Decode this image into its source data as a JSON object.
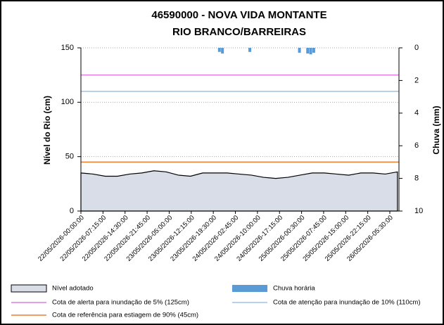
{
  "chart_data": {
    "type": "combo",
    "title": [
      "46590000 - NOVA VIDA MONTANTE",
      "RIO BRANCO/BARREIRAS"
    ],
    "ylabel": "Nível do Rio (cm)",
    "y2label": "Chuva (mm)",
    "xlim": [
      0,
      104.5
    ],
    "xticks": [
      {
        "value": 0,
        "label": "22/05/2026-00:00:00"
      },
      {
        "value": 7.25,
        "label": "22/05/2026-07:15:00"
      },
      {
        "value": 14.5,
        "label": "22/05/2026-14:30:00"
      },
      {
        "value": 21.75,
        "label": "22/05/2026-21:45:00"
      },
      {
        "value": 29,
        "label": "23/05/2026-05:00:00"
      },
      {
        "value": 36.25,
        "label": "23/05/2026-12:15:00"
      },
      {
        "value": 43.5,
        "label": "23/05/2026-19:30:00"
      },
      {
        "value": 50.75,
        "label": "24/05/2026-02:45:00"
      },
      {
        "value": 58,
        "label": "24/05/2026-10:00:00"
      },
      {
        "value": 65.25,
        "label": "24/05/2026-17:15:00"
      },
      {
        "value": 72.5,
        "label": "25/05/2026-00:30:00"
      },
      {
        "value": 79.75,
        "label": "25/05/2026-07:45:00"
      },
      {
        "value": 87,
        "label": "25/05/2026-15:00:00"
      },
      {
        "value": 94.25,
        "label": "25/05/2026-22:15:00"
      },
      {
        "value": 101.5,
        "label": "26/05/2026-05:30:00"
      }
    ],
    "ylim": [
      0,
      150
    ],
    "yticks": [
      0,
      50,
      100,
      150
    ],
    "y2lim": [
      0,
      10
    ],
    "y2ticks": [
      0,
      2,
      4,
      6,
      8,
      10
    ],
    "y2_inverted": true,
    "grid": true,
    "series": [
      {
        "name": "Nível adotado",
        "type": "area",
        "color": "#d9dde8",
        "x": [
          0,
          4,
          8,
          12,
          16,
          20,
          24,
          28,
          32,
          36,
          40,
          44,
          48,
          52,
          56,
          60,
          64,
          68,
          72,
          76,
          80,
          84,
          88,
          92,
          96,
          100,
          104
        ],
        "values": [
          35,
          34,
          32,
          32,
          34,
          35,
          37,
          36,
          33,
          32,
          35,
          35,
          35,
          34,
          33,
          31,
          30,
          31,
          33,
          35,
          35,
          34,
          33,
          35,
          35,
          34,
          36
        ]
      },
      {
        "name": "Chuva horária",
        "type": "bar",
        "axis": "y2",
        "color": "#5b9bd5",
        "x": [
          45.5,
          46.5,
          55.5,
          71.8,
          74.5,
          75.5,
          76.5
        ],
        "values": [
          0.25,
          0.35,
          0.25,
          0.3,
          0.35,
          0.4,
          0.3
        ]
      }
    ],
    "reference_lines": [
      {
        "name": "Cota de alerta para inundação de 5% (125cm)",
        "value": 125,
        "color": "#e07de0"
      },
      {
        "name": "Cota de atenção para inundação de 10% (110cm)",
        "value": 110,
        "color": "#9dc3e6"
      },
      {
        "name": "Cota de referência para estiagem de 90% (45cm)",
        "value": 45,
        "color": "#ed7d31"
      }
    ]
  }
}
